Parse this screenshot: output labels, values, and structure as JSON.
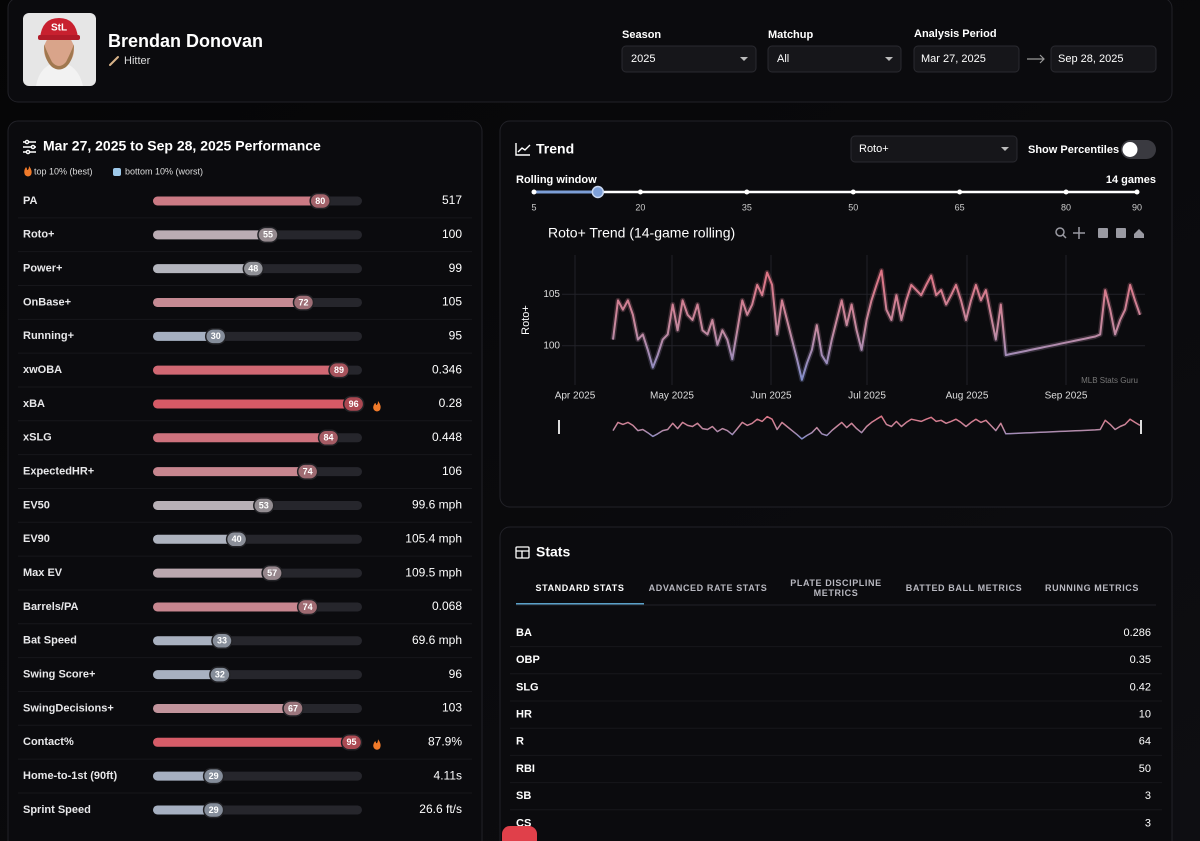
{
  "header": {
    "player_name": "Brendan Donovan",
    "role": "Hitter",
    "filters": [
      {
        "label": "Season",
        "value": "2025"
      },
      {
        "label": "Matchup",
        "value": "All"
      }
    ],
    "analysis_period": {
      "label": "Analysis Period",
      "start": "Mar 27, 2025",
      "end": "Sep 28, 2025"
    }
  },
  "performance": {
    "title": "Mar 27, 2025 to Sep 28, 2025 Performance",
    "legend": [
      "top 10% (best)",
      "bottom 10% (worst)"
    ],
    "rows": [
      {
        "metric": "PA",
        "percentile": 80,
        "value": "517"
      },
      {
        "metric": "Roto+",
        "percentile": 55,
        "value": "100"
      },
      {
        "metric": "Power+",
        "percentile": 48,
        "value": "99"
      },
      {
        "metric": "OnBase+",
        "percentile": 72,
        "value": "105"
      },
      {
        "metric": "Running+",
        "percentile": 30,
        "value": "95"
      },
      {
        "metric": "xwOBA",
        "percentile": 89,
        "value": "0.346"
      },
      {
        "metric": "xBA",
        "percentile": 96,
        "value": "0.28"
      },
      {
        "metric": "xSLG",
        "percentile": 84,
        "value": "0.448"
      },
      {
        "metric": "ExpectedHR+",
        "percentile": 74,
        "value": "106"
      },
      {
        "metric": "EV50",
        "percentile": 53,
        "value": "99.6 mph"
      },
      {
        "metric": "EV90",
        "percentile": 40,
        "value": "105.4 mph"
      },
      {
        "metric": "Max EV",
        "percentile": 57,
        "value": "109.5 mph"
      },
      {
        "metric": "Barrels/PA",
        "percentile": 74,
        "value": "0.068"
      },
      {
        "metric": "Bat Speed",
        "percentile": 33,
        "value": "69.6 mph"
      },
      {
        "metric": "Swing Score+",
        "percentile": 32,
        "value": "96"
      },
      {
        "metric": "SwingDecisions+",
        "percentile": 67,
        "value": "103"
      },
      {
        "metric": "Contact%",
        "percentile": 95,
        "value": "87.9%"
      },
      {
        "metric": "Home-to-1st (90ft)",
        "percentile": 29,
        "value": "4.11s"
      },
      {
        "metric": "Sprint Speed",
        "percentile": 29,
        "value": "26.6 ft/s"
      }
    ]
  },
  "trend": {
    "title": "Trend",
    "metric_select": "Roto+",
    "toggle_label": "Show Percentiles",
    "toggle_on": false,
    "rolling_window": {
      "label": "Rolling window",
      "value": 14,
      "value_label": "14 games",
      "ticks": [
        5,
        20,
        35,
        50,
        65,
        80,
        90
      ]
    },
    "chart_data": {
      "type": "line",
      "title": "Roto+ Trend (14-game rolling)",
      "y_label": "Roto+",
      "xticks": [
        "Apr 2025",
        "May 2025",
        "Jun 2025",
        "Jul 2025",
        "Aug 2025",
        "Sep 2025"
      ],
      "ylim": [
        96.2,
        108.8
      ],
      "yticks": [
        100,
        105
      ],
      "grid": true,
      "annotation": "MLB Stats Guru",
      "values": [
        100.6,
        104.4,
        103.5,
        104.4,
        103,
        100.6,
        101.1,
        99.6,
        97.9,
        99.1,
        100.6,
        101.1,
        104,
        101.5,
        104.4,
        103,
        102.5,
        104,
        101.5,
        101.1,
        102.5,
        100.1,
        101.5,
        100.6,
        98.7,
        101.5,
        104.4,
        103,
        104,
        105.9,
        104.9,
        107.1,
        105.9,
        101.1,
        104.4,
        102.5,
        100.6,
        98.7,
        96.7,
        98.3,
        99.6,
        102,
        99.1,
        98.3,
        100.6,
        102.5,
        104.4,
        102,
        104,
        101.5,
        99.6,
        102.5,
        104.4,
        105.9,
        107.3,
        103.5,
        102.5,
        104.9,
        102.5,
        104.4,
        105.9,
        105.4,
        104.9,
        105.9,
        106.8,
        104.9,
        105.4,
        104,
        104.9,
        105.9,
        104.4,
        102.5,
        104.4,
        105.9,
        104.4,
        105.4,
        103,
        100.6,
        104,
        99.1,
        99.2,
        99.3,
        99.4,
        99.5,
        99.6,
        99.7,
        99.8,
        99.9,
        100.0,
        100.1,
        100.2,
        100.3,
        100.4,
        100.5,
        100.6,
        100.7,
        100.8,
        100.9,
        101.1,
        105.4,
        103.5,
        101.1,
        102.5,
        103.5,
        105.9,
        104.4,
        103
      ]
    }
  },
  "stats": {
    "title": "Stats",
    "tabs": [
      "STANDARD STATS",
      "ADVANCED RATE STATS",
      "PLATE DISCIPLINE METRICS",
      "BATTED BALL METRICS",
      "RUNNING METRICS"
    ],
    "active_tab": 0,
    "rows": [
      {
        "stat": "BA",
        "value": "0.286"
      },
      {
        "stat": "OBP",
        "value": "0.35"
      },
      {
        "stat": "SLG",
        "value": "0.42"
      },
      {
        "stat": "HR",
        "value": "10"
      },
      {
        "stat": "R",
        "value": "64"
      },
      {
        "stat": "RBI",
        "value": "50"
      },
      {
        "stat": "SB",
        "value": "3"
      },
      {
        "stat": "CS",
        "value": "3"
      }
    ]
  }
}
